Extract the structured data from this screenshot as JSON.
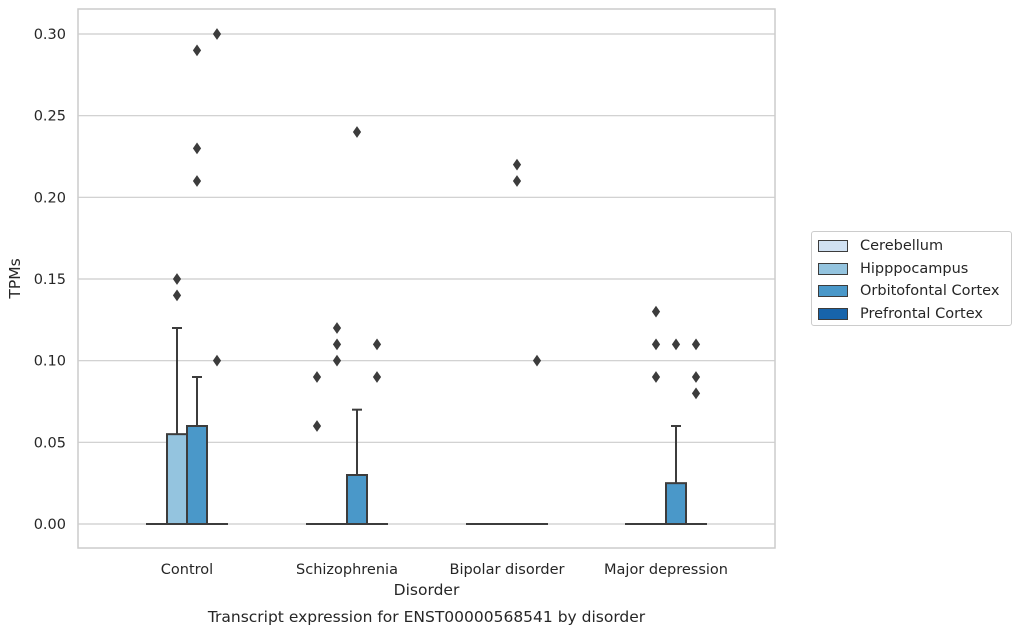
{
  "chart_data": {
    "type": "boxplot",
    "title": "Transcript expression for ENST00000568541 by disorder",
    "xlabel": "Disorder",
    "ylabel": "TPMs",
    "ylim": [
      -0.015,
      0.315
    ],
    "yticks": [
      "0.00",
      "0.05",
      "0.10",
      "0.15",
      "0.20",
      "0.25",
      "0.30"
    ],
    "grid": true,
    "legend_position": "right",
    "categories": [
      "Control",
      "Schizophrenia",
      "Bipolar disorder",
      "Major depression"
    ],
    "series": [
      {
        "name": "Cerebellum",
        "color": "#d0e1f2",
        "boxes": [
          {
            "q1": 0,
            "median": 0,
            "q3": 0,
            "whisker_low": 0,
            "whisker_high": 0,
            "outliers": []
          },
          {
            "q1": 0,
            "median": 0,
            "q3": 0,
            "whisker_low": 0,
            "whisker_high": 0,
            "outliers": [
              0.06,
              0.09
            ]
          },
          {
            "q1": 0,
            "median": 0,
            "q3": 0,
            "whisker_low": 0,
            "whisker_high": 0,
            "outliers": []
          },
          {
            "q1": 0,
            "median": 0,
            "q3": 0,
            "whisker_low": 0,
            "whisker_high": 0,
            "outliers": []
          }
        ]
      },
      {
        "name": "Hipppocampus",
        "color": "#94c4df",
        "boxes": [
          {
            "q1": 0,
            "median": 0,
            "q3": 0.055,
            "whisker_low": 0,
            "whisker_high": 0.12,
            "outliers": [
              0.14,
              0.15
            ]
          },
          {
            "q1": 0,
            "median": 0,
            "q3": 0,
            "whisker_low": 0,
            "whisker_high": 0,
            "outliers": [
              0.1,
              0.11,
              0.12
            ]
          },
          {
            "q1": 0,
            "median": 0,
            "q3": 0,
            "whisker_low": 0,
            "whisker_high": 0,
            "outliers": []
          },
          {
            "q1": 0,
            "median": 0,
            "q3": 0,
            "whisker_low": 0,
            "whisker_high": 0,
            "outliers": [
              0.09,
              0.11,
              0.13
            ]
          }
        ]
      },
      {
        "name": "Orbitofontal Cortex",
        "color": "#4a98c9",
        "boxes": [
          {
            "q1": 0,
            "median": 0,
            "q3": 0.06,
            "whisker_low": 0,
            "whisker_high": 0.09,
            "outliers": [
              0.21,
              0.23,
              0.29
            ]
          },
          {
            "q1": 0,
            "median": 0,
            "q3": 0.03,
            "whisker_low": 0,
            "whisker_high": 0.07,
            "outliers": [
              0.24
            ]
          },
          {
            "q1": 0,
            "median": 0,
            "q3": 0,
            "whisker_low": 0,
            "whisker_high": 0,
            "outliers": [
              0.21,
              0.22
            ]
          },
          {
            "q1": 0,
            "median": 0,
            "q3": 0.025,
            "whisker_low": 0,
            "whisker_high": 0.06,
            "outliers": [
              0.11
            ]
          }
        ]
      },
      {
        "name": "Prefrontal Cortex",
        "color": "#1764ab",
        "boxes": [
          {
            "q1": 0,
            "median": 0,
            "q3": 0,
            "whisker_low": 0,
            "whisker_high": 0,
            "outliers": [
              0.1,
              0.3
            ]
          },
          {
            "q1": 0,
            "median": 0,
            "q3": 0,
            "whisker_low": 0,
            "whisker_high": 0,
            "outliers": [
              0.09,
              0.11
            ]
          },
          {
            "q1": 0,
            "median": 0,
            "q3": 0,
            "whisker_low": 0,
            "whisker_high": 0,
            "outliers": [
              0.1
            ]
          },
          {
            "q1": 0,
            "median": 0,
            "q3": 0,
            "whisker_low": 0,
            "whisker_high": 0,
            "outliers": [
              0.08,
              0.09,
              0.11
            ]
          }
        ]
      }
    ]
  }
}
